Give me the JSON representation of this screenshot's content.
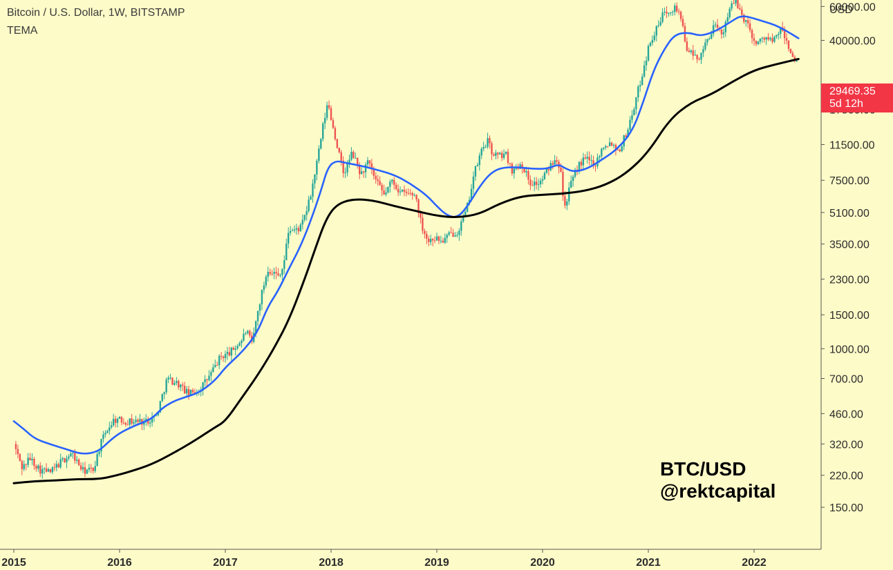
{
  "header": {
    "title": "Bitcoin / U.S. Dollar, 1W, BITSTAMP",
    "indicator": "TEMA"
  },
  "watermark": {
    "line1": "BTC/USD",
    "line2": "@rektcapital"
  },
  "last_price": {
    "value": "29469.35",
    "countdown": "5d 12h",
    "color": "#f23645"
  },
  "colors": {
    "background": "#fdfbc8",
    "up_candle": "#26a69a",
    "down_candle": "#ef5350",
    "fast_tema": "#2962ff",
    "slow_tema": "#000000"
  },
  "chart_data": {
    "type": "candlestick",
    "timeframe": "1W",
    "y_scale": "log",
    "currency_label": "USD",
    "y_ticks": [
      150,
      220,
      320,
      460,
      700,
      1000,
      1500,
      2300,
      3500,
      5100,
      7500,
      11500,
      17500,
      40000,
      60000
    ],
    "y_tick_labels": [
      "150.00",
      "220.00",
      "320.00",
      "460.00",
      "700.00",
      "1000.00",
      "1500.00",
      "2300.00",
      "3500.00",
      "5100.00",
      "7500.00",
      "11500.00",
      "17500.00",
      "40000.00",
      "60000.00"
    ],
    "x_labels": [
      "2015",
      "2016",
      "2017",
      "2018",
      "2019",
      "2020",
      "2021",
      "2022"
    ],
    "x_label_years": [
      2015,
      2016,
      2017,
      2018,
      2019,
      2020,
      2021,
      2022
    ],
    "x_range": [
      2015.0,
      2022.5
    ],
    "price_path": [
      [
        2015.0,
        320
      ],
      [
        2015.08,
        240
      ],
      [
        2015.15,
        270
      ],
      [
        2015.25,
        235
      ],
      [
        2015.35,
        228
      ],
      [
        2015.45,
        260
      ],
      [
        2015.55,
        285
      ],
      [
        2015.65,
        232
      ],
      [
        2015.75,
        235
      ],
      [
        2015.82,
        320
      ],
      [
        2015.88,
        380
      ],
      [
        2015.95,
        430
      ],
      [
        2016.05,
        420
      ],
      [
        2016.15,
        420
      ],
      [
        2016.25,
        420
      ],
      [
        2016.35,
        450
      ],
      [
        2016.45,
        700
      ],
      [
        2016.55,
        660
      ],
      [
        2016.65,
        580
      ],
      [
        2016.75,
        610
      ],
      [
        2016.85,
        720
      ],
      [
        2016.95,
        900
      ],
      [
        2017.05,
        960
      ],
      [
        2017.15,
        1100
      ],
      [
        2017.2,
        1250
      ],
      [
        2017.25,
        1050
      ],
      [
        2017.32,
        1700
      ],
      [
        2017.4,
        2600
      ],
      [
        2017.45,
        2500
      ],
      [
        2017.5,
        2400
      ],
      [
        2017.55,
        2700
      ],
      [
        2017.6,
        4200
      ],
      [
        2017.65,
        4100
      ],
      [
        2017.72,
        4300
      ],
      [
        2017.8,
        6000
      ],
      [
        2017.87,
        9500
      ],
      [
        2017.93,
        15000
      ],
      [
        2017.97,
        19000
      ],
      [
        2018.02,
        14000
      ],
      [
        2018.08,
        10000
      ],
      [
        2018.12,
        8000
      ],
      [
        2018.2,
        10500
      ],
      [
        2018.28,
        8000
      ],
      [
        2018.35,
        9300
      ],
      [
        2018.42,
        7500
      ],
      [
        2018.5,
        6300
      ],
      [
        2018.58,
        7500
      ],
      [
        2018.65,
        6500
      ],
      [
        2018.72,
        6400
      ],
      [
        2018.8,
        6300
      ],
      [
        2018.85,
        4500
      ],
      [
        2018.92,
        3600
      ],
      [
        2018.97,
        3800
      ],
      [
        2019.05,
        3600
      ],
      [
        2019.12,
        3900
      ],
      [
        2019.2,
        4100
      ],
      [
        2019.28,
        5200
      ],
      [
        2019.35,
        8000
      ],
      [
        2019.43,
        11000
      ],
      [
        2019.48,
        12000
      ],
      [
        2019.52,
        10500
      ],
      [
        2019.58,
        10000
      ],
      [
        2019.65,
        10300
      ],
      [
        2019.72,
        8300
      ],
      [
        2019.8,
        9300
      ],
      [
        2019.88,
        7300
      ],
      [
        2019.97,
        7200
      ],
      [
        2020.05,
        8500
      ],
      [
        2020.12,
        10000
      ],
      [
        2020.18,
        8500
      ],
      [
        2020.2,
        5200
      ],
      [
        2020.25,
        6700
      ],
      [
        2020.33,
        8800
      ],
      [
        2020.4,
        9700
      ],
      [
        2020.5,
        9200
      ],
      [
        2020.58,
        11500
      ],
      [
        2020.65,
        11800
      ],
      [
        2020.72,
        10700
      ],
      [
        2020.8,
        13500
      ],
      [
        2020.87,
        18500
      ],
      [
        2020.95,
        28000
      ],
      [
        2021.02,
        40000
      ],
      [
        2021.1,
        48000
      ],
      [
        2021.15,
        57000
      ],
      [
        2021.25,
        59000
      ],
      [
        2021.3,
        56000
      ],
      [
        2021.35,
        38000
      ],
      [
        2021.42,
        33000
      ],
      [
        2021.5,
        33000
      ],
      [
        2021.55,
        40000
      ],
      [
        2021.62,
        47000
      ],
      [
        2021.7,
        43000
      ],
      [
        2021.77,
        60000
      ],
      [
        2021.83,
        63000
      ],
      [
        2021.88,
        55000
      ],
      [
        2021.95,
        47000
      ],
      [
        2022.02,
        38000
      ],
      [
        2022.1,
        42000
      ],
      [
        2022.18,
        39000
      ],
      [
        2022.25,
        46000
      ],
      [
        2022.32,
        38000
      ],
      [
        2022.38,
        31000
      ],
      [
        2022.42,
        29469
      ]
    ],
    "series": [
      {
        "name": "",
        "color": "#2962ff",
        "points": [
          [
            2015.0,
            420
          ],
          [
            2015.1,
            380
          ],
          [
            2015.2,
            340
          ],
          [
            2015.35,
            318
          ],
          [
            2015.5,
            300
          ],
          [
            2015.65,
            282
          ],
          [
            2015.8,
            292
          ],
          [
            2015.9,
            330
          ],
          [
            2016.0,
            365
          ],
          [
            2016.15,
            400
          ],
          [
            2016.3,
            430
          ],
          [
            2016.4,
            490
          ],
          [
            2016.5,
            530
          ],
          [
            2016.6,
            555
          ],
          [
            2016.75,
            590
          ],
          [
            2016.9,
            680
          ],
          [
            2017.0,
            800
          ],
          [
            2017.15,
            950
          ],
          [
            2017.3,
            1200
          ],
          [
            2017.4,
            1650
          ],
          [
            2017.5,
            2000
          ],
          [
            2017.6,
            2600
          ],
          [
            2017.7,
            3300
          ],
          [
            2017.8,
            4500
          ],
          [
            2017.9,
            6500
          ],
          [
            2017.97,
            8800
          ],
          [
            2018.05,
            9500
          ],
          [
            2018.15,
            9200
          ],
          [
            2018.25,
            9000
          ],
          [
            2018.4,
            8600
          ],
          [
            2018.6,
            8000
          ],
          [
            2018.75,
            7200
          ],
          [
            2018.9,
            6300
          ],
          [
            2019.0,
            5500
          ],
          [
            2019.1,
            4900
          ],
          [
            2019.2,
            4800
          ],
          [
            2019.3,
            5600
          ],
          [
            2019.4,
            6900
          ],
          [
            2019.5,
            8100
          ],
          [
            2019.6,
            8700
          ],
          [
            2019.75,
            8800
          ],
          [
            2019.9,
            8600
          ],
          [
            2020.05,
            8600
          ],
          [
            2020.15,
            9100
          ],
          [
            2020.22,
            8600
          ],
          [
            2020.3,
            8300
          ],
          [
            2020.42,
            8600
          ],
          [
            2020.55,
            9500
          ],
          [
            2020.7,
            10800
          ],
          [
            2020.85,
            13500
          ],
          [
            2020.95,
            19000
          ],
          [
            2021.05,
            28000
          ],
          [
            2021.15,
            36000
          ],
          [
            2021.25,
            43000
          ],
          [
            2021.38,
            44000
          ],
          [
            2021.5,
            42000
          ],
          [
            2021.65,
            45000
          ],
          [
            2021.78,
            50000
          ],
          [
            2021.88,
            54000
          ],
          [
            2022.0,
            52000
          ],
          [
            2022.1,
            50000
          ],
          [
            2022.2,
            48000
          ],
          [
            2022.3,
            45000
          ],
          [
            2022.42,
            41000
          ]
        ]
      },
      {
        "name": "",
        "color": "#000000",
        "points": [
          [
            2015.0,
            200
          ],
          [
            2015.2,
            205
          ],
          [
            2015.4,
            207
          ],
          [
            2015.6,
            210
          ],
          [
            2015.8,
            210
          ],
          [
            2015.95,
            218
          ],
          [
            2016.1,
            230
          ],
          [
            2016.3,
            250
          ],
          [
            2016.5,
            285
          ],
          [
            2016.7,
            330
          ],
          [
            2016.9,
            390
          ],
          [
            2017.0,
            420
          ],
          [
            2017.15,
            550
          ],
          [
            2017.3,
            720
          ],
          [
            2017.45,
            980
          ],
          [
            2017.6,
            1400
          ],
          [
            2017.75,
            2300
          ],
          [
            2017.85,
            3300
          ],
          [
            2017.95,
            4700
          ],
          [
            2018.05,
            5600
          ],
          [
            2018.2,
            6000
          ],
          [
            2018.4,
            5900
          ],
          [
            2018.6,
            5500
          ],
          [
            2018.8,
            5200
          ],
          [
            2019.0,
            4900
          ],
          [
            2019.2,
            4800
          ],
          [
            2019.4,
            5000
          ],
          [
            2019.6,
            5700
          ],
          [
            2019.8,
            6200
          ],
          [
            2020.0,
            6300
          ],
          [
            2020.2,
            6400
          ],
          [
            2020.4,
            6600
          ],
          [
            2020.6,
            7100
          ],
          [
            2020.8,
            8200
          ],
          [
            2021.0,
            10500
          ],
          [
            2021.2,
            15500
          ],
          [
            2021.4,
            19000
          ],
          [
            2021.6,
            21000
          ],
          [
            2021.8,
            24500
          ],
          [
            2022.0,
            28000
          ],
          [
            2022.2,
            30000
          ],
          [
            2022.42,
            32000
          ]
        ]
      }
    ]
  }
}
